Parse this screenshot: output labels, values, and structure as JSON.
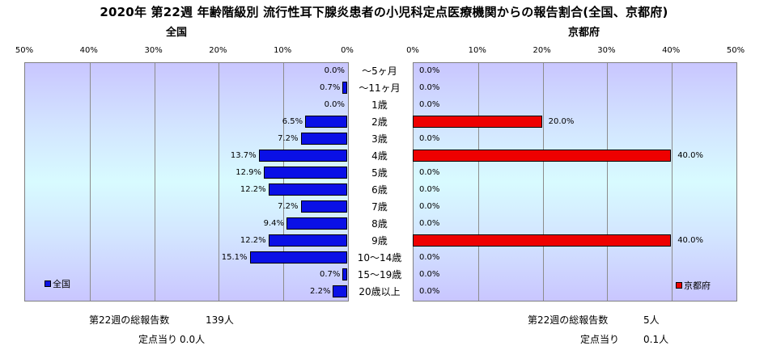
{
  "title": "2020年 第22週 年齢階級別 流行性耳下腺炎患者の小児科定点医療機関からの報告割合(全国、京都府)",
  "panels": {
    "left_title": "全国",
    "right_title": "京都府"
  },
  "left_ticks": [
    "50%",
    "40%",
    "30%",
    "20%",
    "10%",
    "0%"
  ],
  "right_ticks": [
    "0%",
    "10%",
    "20%",
    "30%",
    "40%",
    "50%"
  ],
  "chart_data": {
    "type": "bar",
    "orientation": "horizontal",
    "categories": [
      "～5ヶ月",
      "～11ヶ月",
      "1歳",
      "2歳",
      "3歳",
      "4歳",
      "5歳",
      "6歳",
      "7歳",
      "8歳",
      "9歳",
      "10～14歳",
      "15～19歳",
      "20歳以上"
    ],
    "series": [
      {
        "name": "全国",
        "color": "#0a10e6",
        "values": [
          0.0,
          0.7,
          0.0,
          6.5,
          7.2,
          13.7,
          12.9,
          12.2,
          7.2,
          9.4,
          12.2,
          15.1,
          0.7,
          2.2
        ],
        "labels": [
          "0.0%",
          "0.7%",
          "0.0%",
          "6.5%",
          "7.2%",
          "13.7%",
          "12.9%",
          "12.2%",
          "7.2%",
          "9.4%",
          "12.2%",
          "15.1%",
          "0.7%",
          "2.2%"
        ]
      },
      {
        "name": "京都府",
        "color": "#ee0000",
        "values": [
          0.0,
          0.0,
          0.0,
          20.0,
          0.0,
          40.0,
          0.0,
          0.0,
          0.0,
          0.0,
          40.0,
          0.0,
          0.0,
          0.0
        ],
        "labels": [
          "0.0%",
          "0.0%",
          "0.0%",
          "20.0%",
          "0.0%",
          "40.0%",
          "0.0%",
          "0.0%",
          "0.0%",
          "0.0%",
          "40.0%",
          "0.0%",
          "0.0%",
          "0.0%"
        ]
      }
    ],
    "xlim": [
      0,
      50
    ],
    "grid": true,
    "legend_left": "全国",
    "legend_right": "京都府"
  },
  "footer": {
    "left_total_label": "第22週の総報告数",
    "left_total_value": "139人",
    "left_per_label": "定点当り",
    "left_per_value": "0.0人",
    "right_total_label": "第22週の総報告数",
    "right_total_value": "5人",
    "right_per_label": "定点当り",
    "right_per_value": "0.1人"
  }
}
